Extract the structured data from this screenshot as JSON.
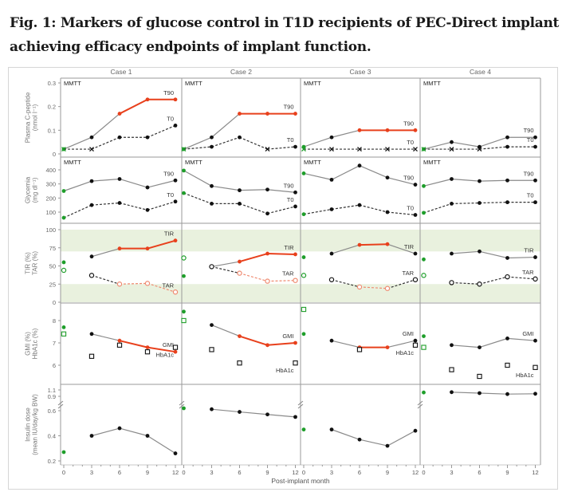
{
  "figure": {
    "title": "Fig. 1: Markers of glucose control in T1D recipients of PEC-Direct implant achieving efficacy endpoints of implant function."
  },
  "colors": {
    "highlight": "#e8401c",
    "highlight_light": "#ef8a70",
    "baseline": "#1e9e2a",
    "default": "#111111",
    "line": "#8a8a8a",
    "band": "#e9f1de",
    "grid": "#9a9a9a"
  },
  "chart_data": {
    "type": "line",
    "title": "Fig. 1: Markers of glucose control in T1D recipients of PEC-Direct implant achieving efficacy endpoints of implant function.",
    "columns": [
      "Case 1",
      "Case 2",
      "Case 3",
      "Case 4"
    ],
    "xlabel": "Post-implant month",
    "x": [
      0,
      3,
      6,
      9,
      12
    ],
    "xticks": [
      "0",
      "3",
      "6",
      "9",
      "12"
    ],
    "panels": [
      {
        "id": "cpeptide",
        "ylabel": [
          "Plasma C-peptide",
          "(nmol l⁻¹)"
        ],
        "annotation": "MMTT",
        "yticks": [
          0,
          0.1,
          0.2,
          0.3
        ],
        "ylim": [
          0,
          0.3
        ],
        "baseline_connected": true,
        "bands": [],
        "series": [
          {
            "name": "T90",
            "style": "solid",
            "marker": "dot",
            "line": true,
            "label_pos": "above",
            "values": [
              [
                0.02,
                0.07,
                0.17,
                0.23,
                0.23
              ],
              [
                0.02,
                0.07,
                0.17,
                0.17,
                0.17
              ],
              [
                0.03,
                0.07,
                0.1,
                0.1,
                0.1
              ],
              [
                0.02,
                0.05,
                0.03,
                0.07,
                0.07
              ]
            ],
            "highlight": [
              [
                false,
                false,
                true,
                true,
                true
              ],
              [
                false,
                false,
                true,
                true,
                true
              ],
              [
                false,
                false,
                true,
                true,
                true
              ],
              [
                false,
                false,
                false,
                false,
                false
              ]
            ],
            "undetectable": [
              [
                false,
                false,
                false,
                false,
                false
              ],
              [
                false,
                false,
                false,
                false,
                false
              ],
              [
                false,
                false,
                false,
                false,
                false
              ],
              [
                false,
                false,
                false,
                false,
                false
              ]
            ]
          },
          {
            "name": "T0",
            "style": "dashed",
            "marker": "dot",
            "line": true,
            "label_pos": "above",
            "values": [
              [
                0.02,
                0.02,
                0.07,
                0.07,
                0.12
              ],
              [
                0.02,
                0.03,
                0.07,
                0.02,
                0.03
              ],
              [
                0.02,
                0.02,
                0.02,
                0.02,
                0.02
              ],
              [
                0.02,
                0.02,
                0.02,
                0.03,
                0.03
              ]
            ],
            "highlight": [
              [
                false,
                false,
                false,
                false,
                false
              ],
              [
                false,
                false,
                false,
                false,
                false
              ],
              [
                false,
                false,
                false,
                false,
                false
              ],
              [
                false,
                false,
                false,
                false,
                false
              ]
            ],
            "undetectable": [
              [
                true,
                true,
                false,
                false,
                false
              ],
              [
                true,
                false,
                false,
                true,
                false
              ],
              [
                true,
                true,
                true,
                true,
                true
              ],
              [
                true,
                true,
                true,
                false,
                false
              ]
            ]
          }
        ]
      },
      {
        "id": "glycemia",
        "ylabel": [
          "Glycemia",
          "(mg dl⁻¹)"
        ],
        "annotation": "MMTT",
        "yticks": [
          100,
          200,
          300,
          400
        ],
        "ylim": [
          50,
          450
        ],
        "baseline_connected": true,
        "bands": [],
        "series": [
          {
            "name": "T90",
            "style": "solid",
            "marker": "dot",
            "line": true,
            "label_pos": "above",
            "values": [
              [
                250,
                320,
                335,
                275,
                325
              ],
              [
                395,
                285,
                255,
                260,
                240
              ],
              [
                375,
                330,
                430,
                345,
                295
              ],
              [
                285,
                335,
                320,
                325,
                325
              ]
            ]
          },
          {
            "name": "T0",
            "style": "dashed",
            "marker": "dot",
            "line": true,
            "label_pos": "above",
            "values": [
              [
                60,
                150,
                165,
                115,
                175
              ],
              [
                235,
                160,
                160,
                90,
                140
              ],
              [
                85,
                120,
                150,
                100,
                80
              ],
              [
                95,
                160,
                165,
                170,
                170
              ]
            ]
          }
        ]
      },
      {
        "id": "tir-tar",
        "ylabel": [
          "TIR (%)",
          "TAR (%)"
        ],
        "annotation": null,
        "yticks": [
          0,
          25,
          50,
          75,
          100
        ],
        "ylim": [
          0,
          100
        ],
        "baseline_connected": false,
        "bands": [
          [
            70,
            100
          ],
          [
            0,
            25
          ]
        ],
        "series": [
          {
            "name": "TIR",
            "style": "solid",
            "marker": "dot",
            "line": true,
            "label_pos": "above",
            "values": [
              [
                55,
                63,
                74,
                74,
                85
              ],
              [
                36,
                49,
                56,
                67,
                66
              ],
              [
                62,
                67,
                79,
                80,
                67
              ],
              [
                59,
                67,
                70,
                61,
                62
              ]
            ],
            "highlight": [
              [
                false,
                false,
                true,
                true,
                true
              ],
              [
                false,
                false,
                true,
                true,
                true
              ],
              [
                false,
                false,
                true,
                true,
                false
              ],
              [
                false,
                false,
                false,
                false,
                false
              ]
            ]
          },
          {
            "name": "TAR",
            "style": "dashed",
            "marker": "open-circle",
            "line": true,
            "label_pos": "above",
            "values": [
              [
                44,
                37,
                25,
                26,
                14
              ],
              [
                61,
                49,
                40,
                29,
                30
              ],
              [
                37,
                31,
                21,
                19,
                31
              ],
              [
                37,
                27,
                25,
                35,
                32
              ]
            ],
            "highlight": [
              [
                false,
                false,
                true,
                true,
                true
              ],
              [
                false,
                false,
                true,
                true,
                true
              ],
              [
                false,
                false,
                true,
                true,
                false
              ],
              [
                false,
                false,
                false,
                false,
                false
              ]
            ]
          }
        ]
      },
      {
        "id": "gmi-hba1c",
        "ylabel": [
          "GMI (%)",
          "HbA1c (%)"
        ],
        "annotation": null,
        "yticks": [
          6,
          7,
          8
        ],
        "ylim": [
          5.3,
          8.8
        ],
        "baseline_connected": false,
        "bands": [],
        "series": [
          {
            "name": "GMI",
            "style": "solid",
            "marker": "dot",
            "line": true,
            "label_pos": "above",
            "values": [
              [
                7.7,
                7.4,
                7.1,
                6.8,
                6.6
              ],
              [
                8.4,
                7.8,
                7.3,
                6.9,
                7.0
              ],
              [
                7.4,
                7.1,
                6.8,
                6.8,
                7.1
              ],
              [
                7.3,
                6.9,
                6.8,
                7.2,
                7.1
              ]
            ],
            "highlight": [
              [
                false,
                false,
                true,
                true,
                true
              ],
              [
                false,
                false,
                true,
                true,
                true
              ],
              [
                false,
                false,
                true,
                true,
                false
              ],
              [
                false,
                false,
                false,
                false,
                false
              ]
            ]
          },
          {
            "name": "HbA1c",
            "style": "none",
            "marker": "square",
            "line": false,
            "label_pos": "below",
            "values": [
              [
                7.4,
                6.4,
                6.9,
                6.6,
                6.8
              ],
              [
                8.0,
                6.7,
                6.1,
                null,
                6.1
              ],
              [
                8.5,
                null,
                6.7,
                null,
                6.9
              ],
              [
                6.8,
                5.8,
                5.5,
                6.0,
                5.9
              ]
            ]
          }
        ]
      },
      {
        "id": "insulin",
        "ylabel": [
          "Insulin dose",
          "(mean IU/day/kg BW)"
        ],
        "annotation": null,
        "yticks": [
          0.2,
          0.4,
          0.6,
          0.9,
          1.1
        ],
        "ylim": [
          0.2,
          1.1
        ],
        "axis_break": [
          0.6,
          0.9
        ],
        "baseline_connected": false,
        "bands": [],
        "series": [
          {
            "name": "Insulin dose",
            "style": "solid",
            "marker": "dot",
            "line": true,
            "label_pos": null,
            "values": [
              [
                0.27,
                0.4,
                0.46,
                0.4,
                0.26
              ],
              [
                0.65,
                0.63,
                0.59,
                0.57,
                0.55
              ],
              [
                0.45,
                0.45,
                0.37,
                0.32,
                0.44
              ],
              [
                1.02,
                1.03,
                1.0,
                0.97,
                0.98
              ]
            ]
          }
        ]
      }
    ]
  }
}
